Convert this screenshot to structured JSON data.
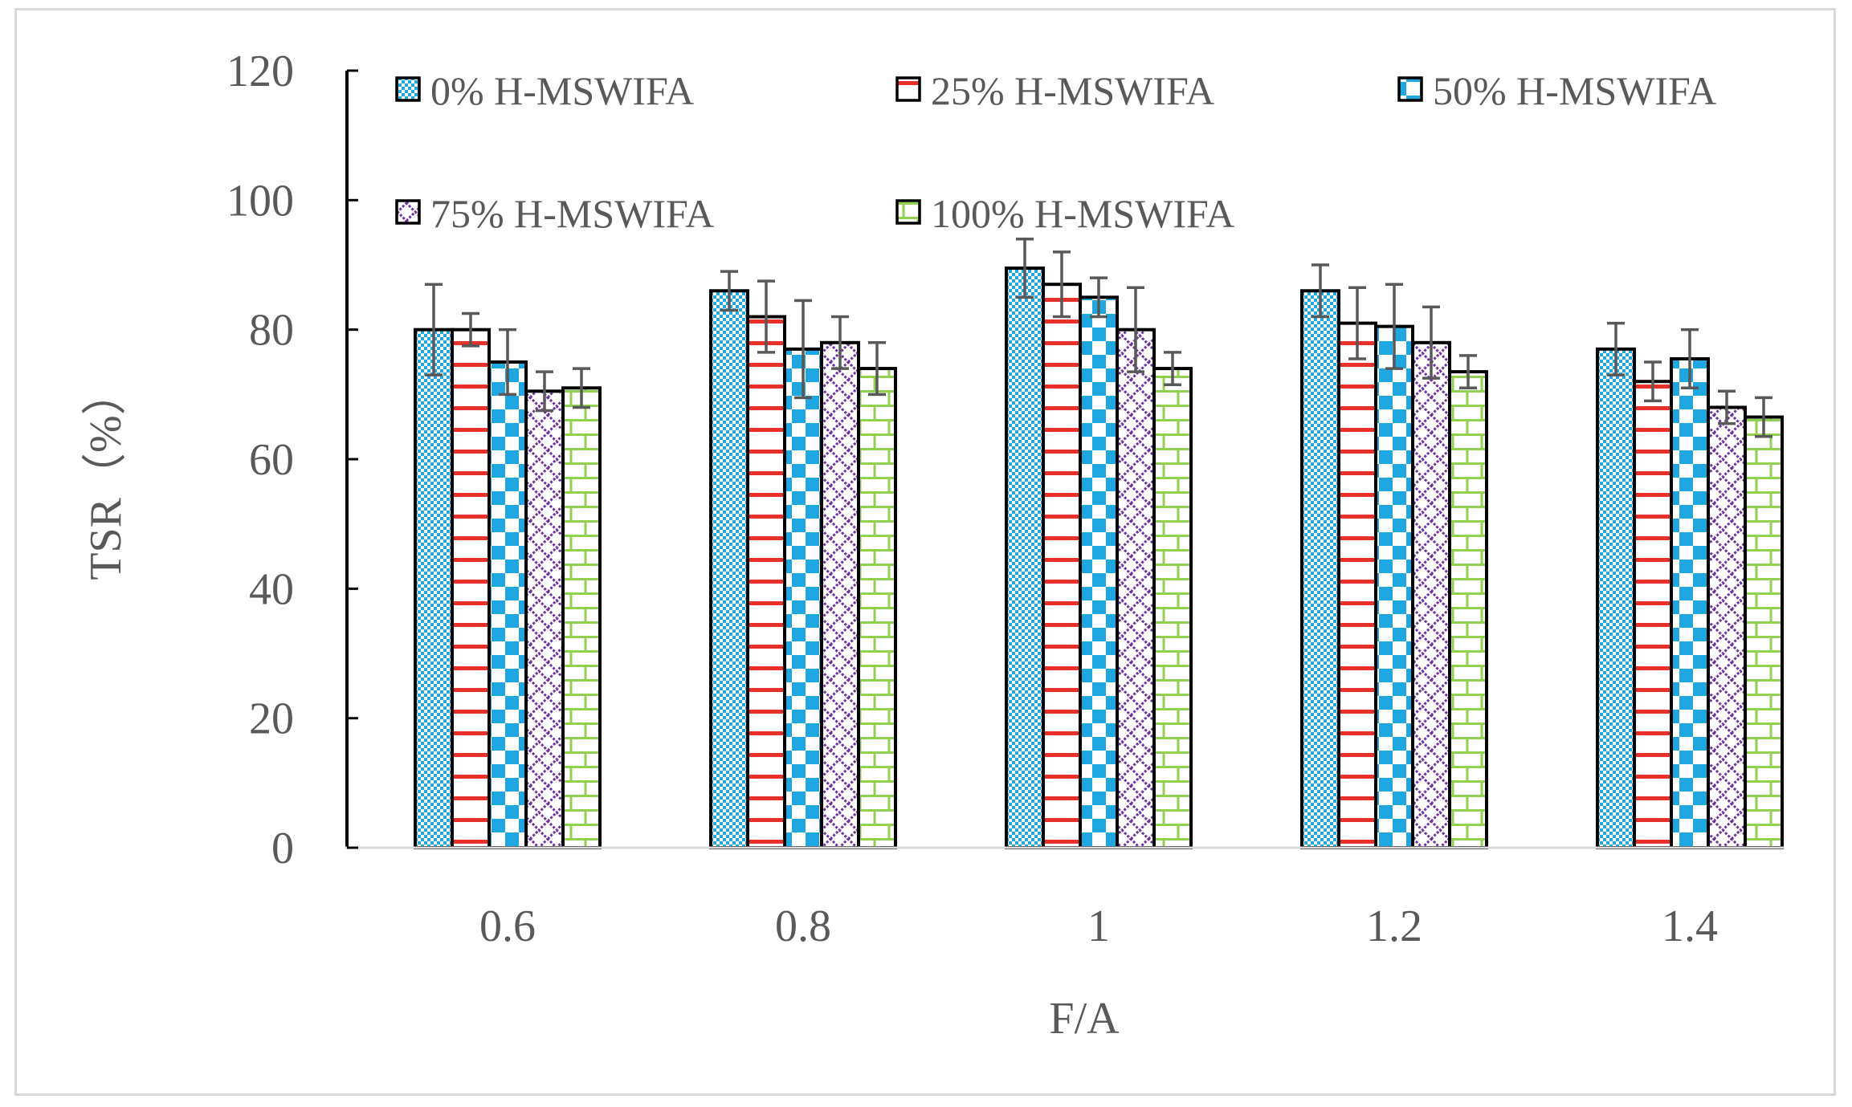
{
  "chart_data": {
    "type": "bar",
    "title": "",
    "xlabel": "F/A",
    "ylabel": "TSR（%）",
    "ylim": [
      0,
      120
    ],
    "yticks": [
      "0",
      "20",
      "40",
      "60",
      "80",
      "100",
      "120"
    ],
    "categories": [
      "0.6",
      "0.8",
      "1",
      "1.2",
      "1.4"
    ],
    "legend_position": "top",
    "series": [
      {
        "name": "0% H-MSWIFA",
        "pattern": "fine-check",
        "color": "#1EA7E1",
        "values": [
          80,
          86,
          89.5,
          86,
          77
        ],
        "errors": [
          7,
          3,
          4.5,
          4,
          4
        ]
      },
      {
        "name": "25% H-MSWIFA",
        "pattern": "hstripe",
        "color": "#E8302A",
        "values": [
          80,
          82,
          87,
          81,
          72
        ],
        "errors": [
          2.5,
          5.5,
          5,
          5.5,
          3
        ]
      },
      {
        "name": "50% H-MSWIFA",
        "pattern": "big-check",
        "color": "#1EA7E1",
        "values": [
          75,
          77,
          85,
          80.5,
          75.5
        ],
        "errors": [
          5,
          7.5,
          3,
          6.5,
          4.5
        ]
      },
      {
        "name": "75% H-MSWIFA",
        "pattern": "diamond",
        "color": "#7030A0",
        "values": [
          70.5,
          78,
          80,
          78,
          68
        ],
        "errors": [
          3,
          4,
          6.5,
          5.5,
          2.5
        ]
      },
      {
        "name": "100% H-MSWIFA",
        "pattern": "brick",
        "color": "#92D050",
        "values": [
          71,
          74,
          74,
          73.5,
          66.5
        ],
        "errors": [
          3,
          4,
          2.5,
          2.5,
          3
        ]
      }
    ]
  }
}
